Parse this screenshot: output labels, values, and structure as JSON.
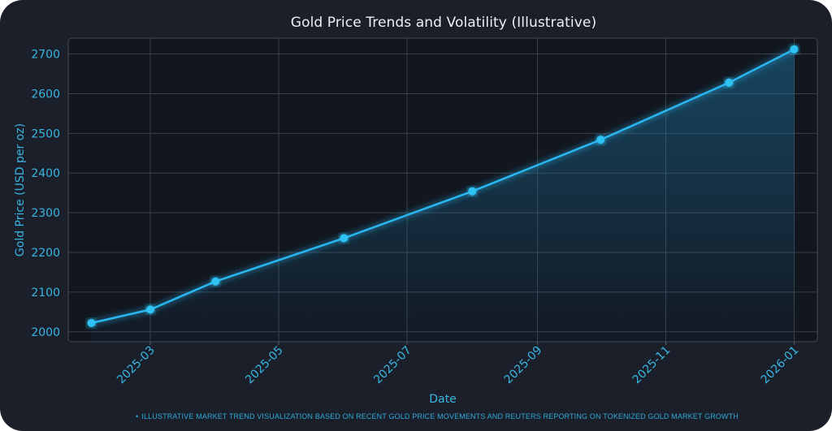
{
  "chart_data": {
    "type": "area",
    "title": "Gold Price Trends and Volatility (Illustrative)",
    "xlabel": "Date",
    "ylabel": "Gold Price (USD per oz)",
    "x": [
      "2025-02-01",
      "2025-03-01",
      "2025-04-01",
      "2025-06-01",
      "2025-08-01",
      "2025-10-01",
      "2025-12-01",
      "2026-01-01"
    ],
    "series": [
      {
        "values": [
          2022,
          2056,
          2127,
          2236,
          2354,
          2484,
          2628,
          2712
        ]
      }
    ],
    "x_ticks": [
      "2025-03",
      "2025-05",
      "2025-07",
      "2025-09",
      "2025-11",
      "2026-01"
    ],
    "y_ticks": [
      2000,
      2100,
      2200,
      2300,
      2400,
      2500,
      2600,
      2700
    ],
    "ylim": [
      1975,
      2740
    ],
    "xlim": [
      "2025-01-21",
      "2026-01-12"
    ],
    "grid": true,
    "annotation": "ILLUSTRATIVE MARKET TREND VISUALIZATION BASED ON RECENT GOLD PRICE MOVEMENTS AND REUTERS REPORTING ON TOKENIZED GOLD MARKET GROWTH",
    "colors": {
      "line": "#29b6f0",
      "marker": "#2ec2f5",
      "text": "#38b6e3",
      "plot_bg": "#12161f",
      "grid": "#3a404c"
    }
  }
}
